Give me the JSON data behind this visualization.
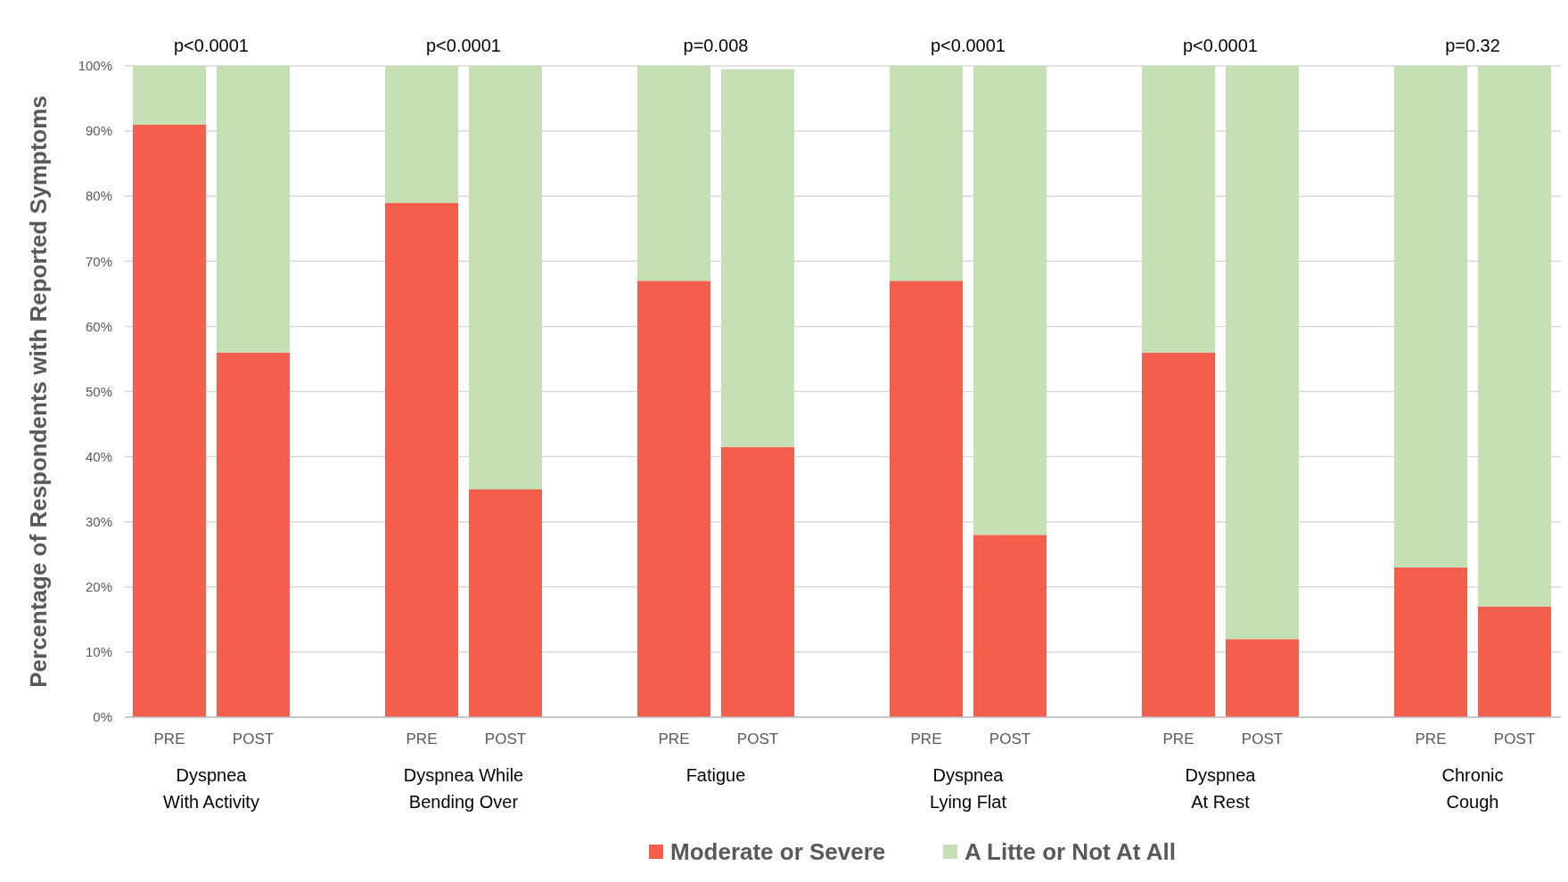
{
  "chart_data": {
    "type": "bar",
    "stacked": true,
    "ylabel": "Percentage of Respondents with Reported Symptoms",
    "categories": [
      "PRE",
      "POST",
      "PRE",
      "POST",
      "PRE",
      "POST",
      "PRE",
      "POST",
      "PRE",
      "POST",
      "PRE",
      "POST"
    ],
    "series": [
      {
        "name": "Moderate or Severe",
        "color": "#f45e4c",
        "values": [
          91,
          56,
          79,
          35,
          67,
          41.5,
          67,
          28,
          56,
          12,
          23,
          17
        ]
      },
      {
        "name": "A Litte or Not At All",
        "color": "#c5e0b4",
        "values": [
          9,
          44,
          21,
          65,
          33,
          58,
          33,
          72,
          44,
          88,
          77,
          83
        ]
      }
    ],
    "ylim": [
      0,
      100
    ],
    "yticks": [
      {
        "value": 0,
        "label": "0%"
      },
      {
        "value": 10,
        "label": "10%"
      },
      {
        "value": 20,
        "label": "20%"
      },
      {
        "value": 30,
        "label": "30%"
      },
      {
        "value": 40,
        "label": "40%"
      },
      {
        "value": 50,
        "label": "50%"
      },
      {
        "value": 60,
        "label": "60%"
      },
      {
        "value": 70,
        "label": "70%"
      },
      {
        "value": 80,
        "label": "80%"
      },
      {
        "value": 90,
        "label": "90%"
      },
      {
        "value": 100,
        "label": "100%"
      }
    ],
    "grid": "y",
    "legend": "bottom",
    "annotations": [
      "Dyspnea\nWith Activity",
      "Dyspnea While\nBending Over",
      "Fatigue",
      "Dyspnea\nLying Flat",
      "Dyspnea\nAt Rest",
      "Chronic\nCough",
      "p<0.0001",
      "p<0.0001",
      "p=0.008",
      "p<0.0001",
      "p<0.0001",
      "p=0.32"
    ]
  }
}
